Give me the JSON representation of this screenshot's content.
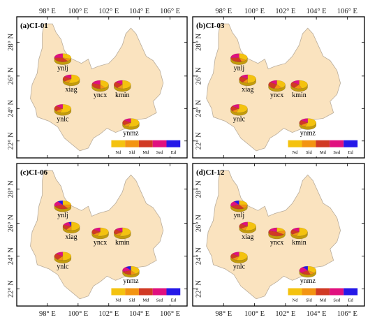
{
  "figure": {
    "x_ticks": [
      "98° E",
      "100° E",
      "102° E",
      "104° E",
      "106° E"
    ],
    "y_ticks": [
      "28° N",
      "26° N",
      "24° N",
      "22° N"
    ],
    "colors": {
      "province_fill": "#fae3bf",
      "province_stroke": "#b9ad9c",
      "frame": "#000000"
    }
  },
  "legend": {
    "items": [
      {
        "label": "Nd",
        "color": "#f4c20f"
      },
      {
        "label": "Sld",
        "color": "#f39412"
      },
      {
        "label": "Md",
        "color": "#d13a24"
      },
      {
        "label": "Sed",
        "color": "#e0107f"
      },
      {
        "label": "Ed",
        "color": "#2518e8"
      }
    ]
  },
  "panels": [
    {
      "title": "(a)CI-01",
      "cities": [
        {
          "name": "ynlj",
          "shares": [
            0.3,
            0.1,
            0.35,
            0.25,
            0.0
          ]
        },
        {
          "name": "xiag",
          "shares": [
            0.55,
            0.1,
            0.2,
            0.15,
            0.0
          ]
        },
        {
          "name": "yncx",
          "shares": [
            0.4,
            0.1,
            0.3,
            0.2,
            0.0
          ]
        },
        {
          "name": "kmin",
          "shares": [
            0.5,
            0.1,
            0.25,
            0.15,
            0.0
          ]
        },
        {
          "name": "ynlc",
          "shares": [
            0.55,
            0.1,
            0.2,
            0.15,
            0.0
          ]
        },
        {
          "name": "ynmz",
          "shares": [
            0.55,
            0.1,
            0.2,
            0.15,
            0.0
          ]
        }
      ]
    },
    {
      "title": "(b)CI-03",
      "cities": [
        {
          "name": "ynlj",
          "shares": [
            0.35,
            0.1,
            0.3,
            0.25,
            0.0
          ]
        },
        {
          "name": "xiag",
          "shares": [
            0.5,
            0.1,
            0.25,
            0.15,
            0.0
          ]
        },
        {
          "name": "yncx",
          "shares": [
            0.4,
            0.15,
            0.3,
            0.15,
            0.0
          ]
        },
        {
          "name": "kmin",
          "shares": [
            0.45,
            0.15,
            0.25,
            0.15,
            0.0
          ]
        },
        {
          "name": "ynlc",
          "shares": [
            0.55,
            0.1,
            0.2,
            0.15,
            0.0
          ]
        },
        {
          "name": "ynmz",
          "shares": [
            0.55,
            0.1,
            0.2,
            0.15,
            0.0
          ]
        }
      ]
    },
    {
      "title": "(c)CI-06",
      "cities": [
        {
          "name": "ynlj",
          "shares": [
            0.25,
            0.15,
            0.3,
            0.2,
            0.1
          ]
        },
        {
          "name": "xiag",
          "shares": [
            0.5,
            0.1,
            0.2,
            0.15,
            0.05
          ]
        },
        {
          "name": "yncx",
          "shares": [
            0.55,
            0.1,
            0.2,
            0.15,
            0.0
          ]
        },
        {
          "name": "kmin",
          "shares": [
            0.55,
            0.1,
            0.2,
            0.15,
            0.0
          ]
        },
        {
          "name": "ynlc",
          "shares": [
            0.5,
            0.1,
            0.25,
            0.15,
            0.0
          ]
        },
        {
          "name": "ynmz",
          "shares": [
            0.4,
            0.1,
            0.2,
            0.2,
            0.1
          ]
        }
      ]
    },
    {
      "title": "(d)CI-12",
      "cities": [
        {
          "name": "ynlj",
          "shares": [
            0.25,
            0.15,
            0.3,
            0.2,
            0.1
          ]
        },
        {
          "name": "xiag",
          "shares": [
            0.55,
            0.1,
            0.2,
            0.15,
            0.0
          ]
        },
        {
          "name": "yncx",
          "shares": [
            0.2,
            0.15,
            0.45,
            0.2,
            0.0
          ]
        },
        {
          "name": "kmin",
          "shares": [
            0.55,
            0.1,
            0.2,
            0.15,
            0.0
          ]
        },
        {
          "name": "ynlc",
          "shares": [
            0.55,
            0.1,
            0.2,
            0.15,
            0.0
          ]
        },
        {
          "name": "ynmz",
          "shares": [
            0.35,
            0.1,
            0.2,
            0.25,
            0.1
          ]
        }
      ]
    }
  ]
}
